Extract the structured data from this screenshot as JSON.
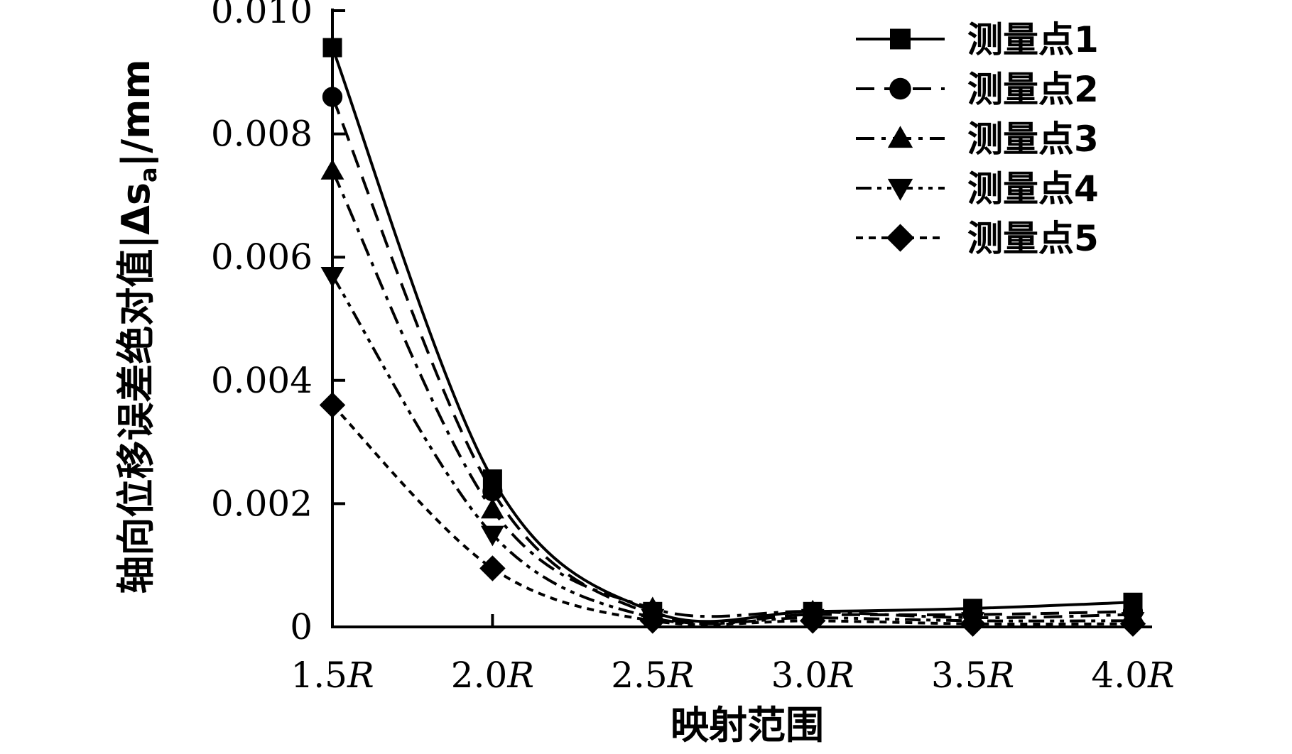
{
  "chart_data": {
    "type": "line",
    "title": "",
    "xlabel": "映射范围",
    "ylabel_prefix": "轴向位移误差绝对值",
    "ylabel_symbol": "|Δs",
    "ylabel_subscript": "a",
    "ylabel_suffix": "|/mm",
    "categories": [
      "1.5",
      "2.0",
      "2.5",
      "3.0",
      "3.5",
      "4.0"
    ],
    "x_suffix": "R",
    "yticks": [
      "0",
      "0.002",
      "0.004",
      "0.006",
      "0.008",
      "0.010"
    ],
    "ytick_values": [
      0,
      0.002,
      0.004,
      0.006,
      0.008,
      0.01
    ],
    "ylim": [
      0,
      0.01
    ],
    "grid": false,
    "legend_position": "top-right",
    "series": [
      {
        "name": "测量点1",
        "marker": "square",
        "dash": "solid",
        "values": [
          0.0094,
          0.0024,
          0.00025,
          0.00025,
          0.0003,
          0.0004
        ]
      },
      {
        "name": "测量点2",
        "marker": "circle",
        "dash": "long-dash",
        "values": [
          0.0086,
          0.0022,
          0.0002,
          0.0002,
          0.0002,
          0.00025
        ]
      },
      {
        "name": "测量点3",
        "marker": "triangle-up",
        "dash": "dash-dot",
        "values": [
          0.0074,
          0.0019,
          0.0003,
          0.00025,
          0.00015,
          0.0002
        ]
      },
      {
        "name": "测量点4",
        "marker": "triangle-down",
        "dash": "dash-dot-dot",
        "values": [
          0.0057,
          0.0015,
          0.00015,
          0.00015,
          0.0001,
          0.0001
        ]
      },
      {
        "name": "测量点5",
        "marker": "diamond",
        "dash": "short-dash",
        "values": [
          0.0036,
          0.00095,
          0.0001,
          0.0001,
          5e-05,
          5e-05
        ]
      }
    ]
  }
}
